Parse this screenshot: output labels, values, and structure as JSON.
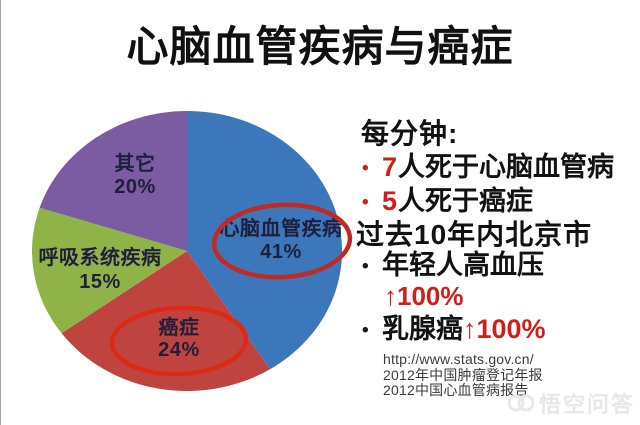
{
  "title": "心脑血管疾病与癌症",
  "icons": {
    "bullet": "•"
  },
  "chart_data": {
    "type": "pie",
    "title": "心脑血管疾病与癌症",
    "labels": [
      "心脑血管疾病",
      "癌症",
      "呼吸系统疾病",
      "其它"
    ],
    "values": [
      41,
      24,
      15,
      20
    ],
    "unit": "%",
    "colors": [
      "#3d77bb",
      "#bf4440",
      "#90b348",
      "#7b5ca2"
    ],
    "label_color": "#1f1f3d",
    "start_angle_deg": 0,
    "direction": "clockwise",
    "legend": "none",
    "annotations": [
      {
        "target": "心脑血管疾病",
        "shape": "ellipse",
        "color": "#c02a22"
      },
      {
        "target": "癌症",
        "shape": "ellipse",
        "color": "#dd2a15"
      }
    ]
  },
  "panel": {
    "heading": "每分钟:",
    "minute_items": [
      {
        "number": "7",
        "text": "人死于心脑血管病"
      },
      {
        "number": "5",
        "text": "人死于癌症"
      }
    ],
    "subheading": "过去10年内北京市",
    "trend_items": [
      {
        "label": "年轻人高血压",
        "stat": "↑100%"
      },
      {
        "label": "乳腺癌",
        "stat": "↑100%"
      }
    ],
    "sources": [
      "http://www.stats.gov.cn/",
      "2012年中国肿瘤登记年报",
      "2012中国心血管病报告"
    ],
    "accent_color": "#ce1f18"
  },
  "watermark": {
    "text": "悟空问答"
  }
}
